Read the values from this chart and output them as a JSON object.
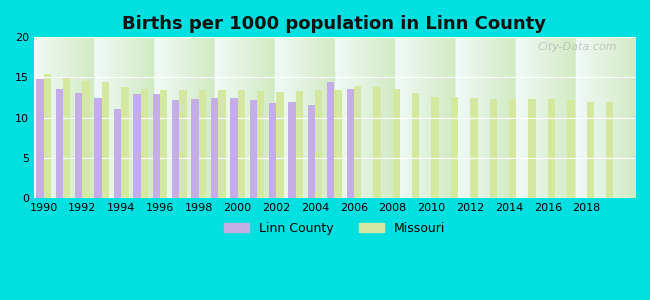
{
  "title": "Births per 1000 population in Linn County",
  "background_color": "#00e0e0",
  "plot_bg_top": "#f0faf8",
  "plot_bg_bottom": "#d8efd0",
  "years": [
    1990,
    1991,
    1992,
    1993,
    1994,
    1995,
    1996,
    1997,
    1998,
    1999,
    2000,
    2001,
    2002,
    2003,
    2004,
    2005,
    2006,
    2007,
    2008,
    2009,
    2010,
    2011,
    2012,
    2013,
    2014,
    2015,
    2016,
    2017,
    2018,
    2019
  ],
  "linn_county": [
    14.8,
    13.6,
    13.1,
    12.5,
    11.1,
    13.0,
    13.0,
    12.2,
    12.3,
    12.5,
    12.5,
    12.2,
    11.8,
    12.0,
    11.6,
    14.4,
    13.6,
    null,
    null,
    null,
    null,
    null,
    null,
    null,
    null,
    null,
    null,
    null,
    null,
    null
  ],
  "missouri": [
    15.4,
    15.1,
    14.6,
    14.4,
    13.8,
    13.6,
    13.5,
    13.5,
    13.5,
    13.5,
    13.5,
    13.3,
    13.2,
    13.3,
    13.4,
    13.5,
    14.0,
    13.8,
    13.6,
    13.1,
    12.6,
    12.6,
    12.5,
    12.3,
    12.3,
    12.3,
    12.3,
    12.2,
    12.0,
    11.9
  ],
  "linn_color": "#c5aee8",
  "missouri_color": "#d4e8a0",
  "ylim": [
    0,
    20
  ],
  "yticks": [
    0,
    5,
    10,
    15,
    20
  ],
  "xtick_years": [
    1990,
    1992,
    1994,
    1996,
    1998,
    2000,
    2002,
    2004,
    2006,
    2008,
    2010,
    2012,
    2014,
    2016,
    2018
  ],
  "watermark": "City-Data.com",
  "legend_linn": "Linn County",
  "legend_missouri": "Missouri",
  "bar_width": 0.38
}
